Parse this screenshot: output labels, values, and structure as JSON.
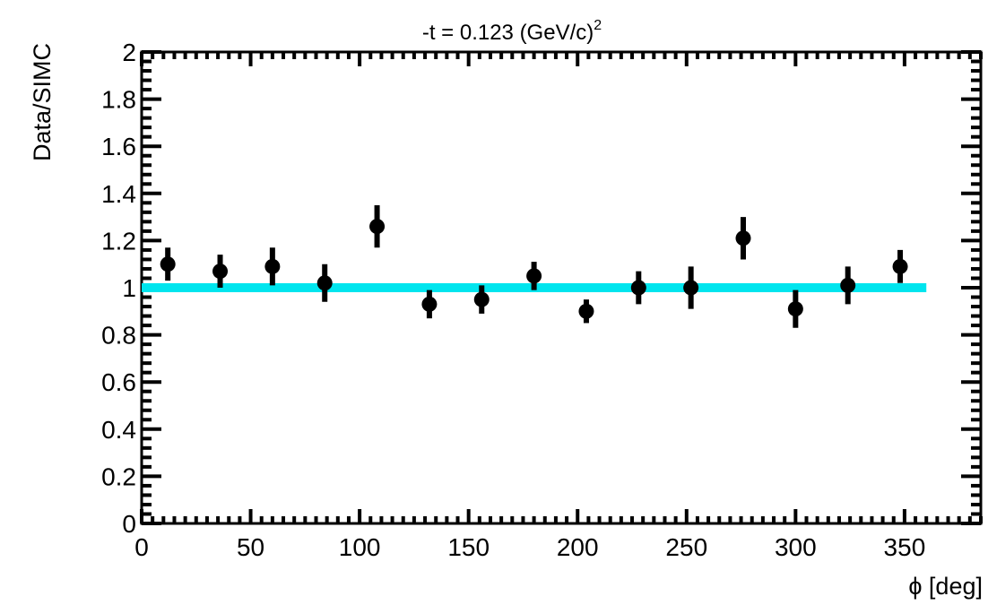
{
  "chart_data": {
    "type": "scatter",
    "title": {
      "prefix": "-t = 0.123 (GeV/c)",
      "superscript": "2"
    },
    "xlabel": "ϕ [deg]",
    "ylabel": "Data/SIMC",
    "xlim": [
      0,
      385
    ],
    "ylim": [
      0,
      2
    ],
    "x_ticks": [
      0,
      50,
      100,
      150,
      200,
      250,
      300,
      350
    ],
    "x_tick_labels": [
      "0",
      "50",
      "100",
      "150",
      "200",
      "250",
      "300",
      "350"
    ],
    "y_ticks": [
      0,
      0.2,
      0.4,
      0.6,
      0.8,
      1,
      1.2,
      1.4,
      1.6,
      1.8,
      2
    ],
    "y_tick_labels": [
      "0",
      "0.2",
      "0.4",
      "0.6",
      "0.8",
      "1",
      "1.2",
      "1.4",
      "1.6",
      "1.8",
      "2"
    ],
    "grid": false,
    "series": [
      {
        "points": [
          {
            "x": 12,
            "y": 1.1,
            "err": 0.07
          },
          {
            "x": 36,
            "y": 1.07,
            "err": 0.07
          },
          {
            "x": 60,
            "y": 1.09,
            "err": 0.08
          },
          {
            "x": 84,
            "y": 1.02,
            "err": 0.08
          },
          {
            "x": 108,
            "y": 1.26,
            "err": 0.09
          },
          {
            "x": 132,
            "y": 0.93,
            "err": 0.06
          },
          {
            "x": 156,
            "y": 0.95,
            "err": 0.06
          },
          {
            "x": 180,
            "y": 1.05,
            "err": 0.06
          },
          {
            "x": 204,
            "y": 0.9,
            "err": 0.05
          },
          {
            "x": 228,
            "y": 1.0,
            "err": 0.07
          },
          {
            "x": 252,
            "y": 1.0,
            "err": 0.09
          },
          {
            "x": 276,
            "y": 1.21,
            "err": 0.09
          },
          {
            "x": 300,
            "y": 0.91,
            "err": 0.08
          },
          {
            "x": 324,
            "y": 1.01,
            "err": 0.08
          },
          {
            "x": 348,
            "y": 1.09,
            "err": 0.07
          }
        ]
      }
    ],
    "fit_line": {
      "x": [
        0,
        360
      ],
      "y": [
        1.0,
        1.0
      ],
      "color": "#00e5ee"
    },
    "marker_color": "#000000"
  }
}
